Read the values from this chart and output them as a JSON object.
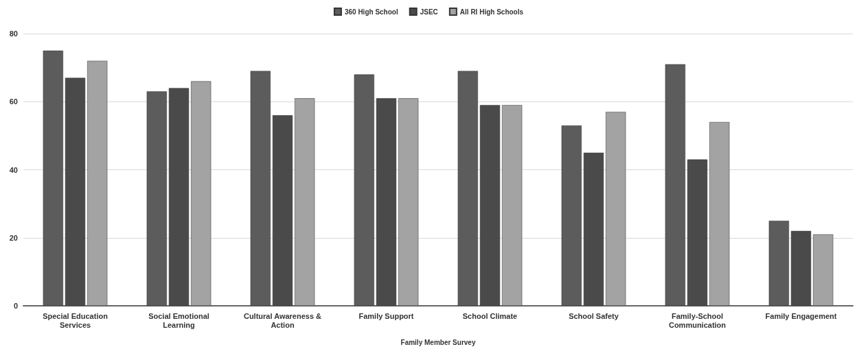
{
  "chart_data": {
    "type": "bar",
    "xlabel": "Family Member Survey",
    "categories": [
      "Special Education Services",
      "Social Emotional Learning",
      "Cultural Awareness & Action",
      "Family Support",
      "School Climate",
      "School Safety",
      "Family-School Communication",
      "Family Engagement"
    ],
    "series": [
      {
        "name": "360 High School",
        "color": "#5c5c5c",
        "values": [
          75,
          63,
          69,
          68,
          69,
          53,
          71,
          25
        ]
      },
      {
        "name": "JSEC",
        "color": "#4a4a4a",
        "values": [
          67,
          64,
          56,
          61,
          59,
          45,
          43,
          22
        ]
      },
      {
        "name": "All RI High Schools",
        "color": "#a3a3a3",
        "values": [
          72,
          66,
          61,
          61,
          59,
          57,
          54,
          21
        ]
      }
    ],
    "ylim": [
      0,
      80
    ],
    "yticks": [
      0,
      20,
      40,
      60,
      80
    ],
    "grid": "y",
    "legend": "top"
  }
}
